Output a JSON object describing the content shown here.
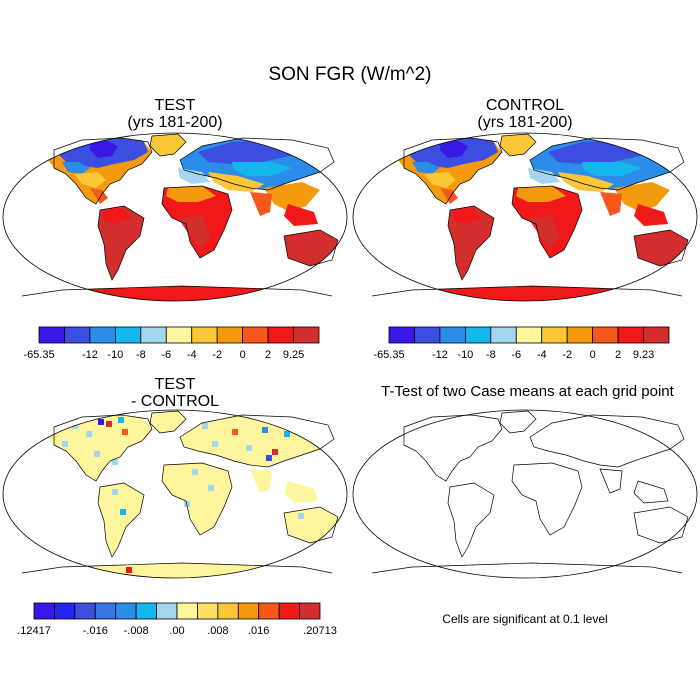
{
  "main_title": "SON FGR (W/m^2)",
  "panels": {
    "test": {
      "title": "TEST",
      "subtitle": "(yrs 181-200)"
    },
    "control": {
      "title": "CONTROL",
      "subtitle": "(yrs 181-200)"
    },
    "diff": {
      "title": "TEST",
      "subtitle": "- CONTROL"
    },
    "ttest": {
      "title": "T-Test of two Case means at each grid point"
    }
  },
  "colorbars": {
    "test": {
      "colors": [
        "#3a17e6",
        "#3c4ee0",
        "#2b8de8",
        "#15b6ee",
        "#a5d6f0",
        "#fff59c",
        "#fbc638",
        "#f59a0d",
        "#f5581a",
        "#f01818",
        "#d22e2e"
      ],
      "labels": [
        "-65.35",
        "-12",
        "-10",
        "-8",
        "-6",
        "-4",
        "-2",
        "0",
        "2",
        "9.25"
      ]
    },
    "control": {
      "colors": [
        "#3a17e6",
        "#3c4ee0",
        "#2b8de8",
        "#15b6ee",
        "#a5d6f0",
        "#fff59c",
        "#fbc638",
        "#f59a0d",
        "#f5581a",
        "#f01818",
        "#d22e2e"
      ],
      "labels": [
        "-65.35",
        "-12",
        "-10",
        "-8",
        "-6",
        "-4",
        "-2",
        "0",
        "2",
        "9.23"
      ]
    },
    "diff": {
      "colors": [
        "#3a17e6",
        "#2424ee",
        "#3c4ee0",
        "#3876e6",
        "#2b8de8",
        "#15b6ee",
        "#a5d6f0",
        "#fff59c",
        "#fbe068",
        "#fbc638",
        "#f59a0d",
        "#f5581a",
        "#f01818",
        "#d22e2e"
      ],
      "labels": [
        ".12417",
        "-.016",
        "-.008",
        ".00",
        ".008",
        ".016",
        ".20713"
      ]
    }
  },
  "note": "Cells are significant at 0.1 level"
}
